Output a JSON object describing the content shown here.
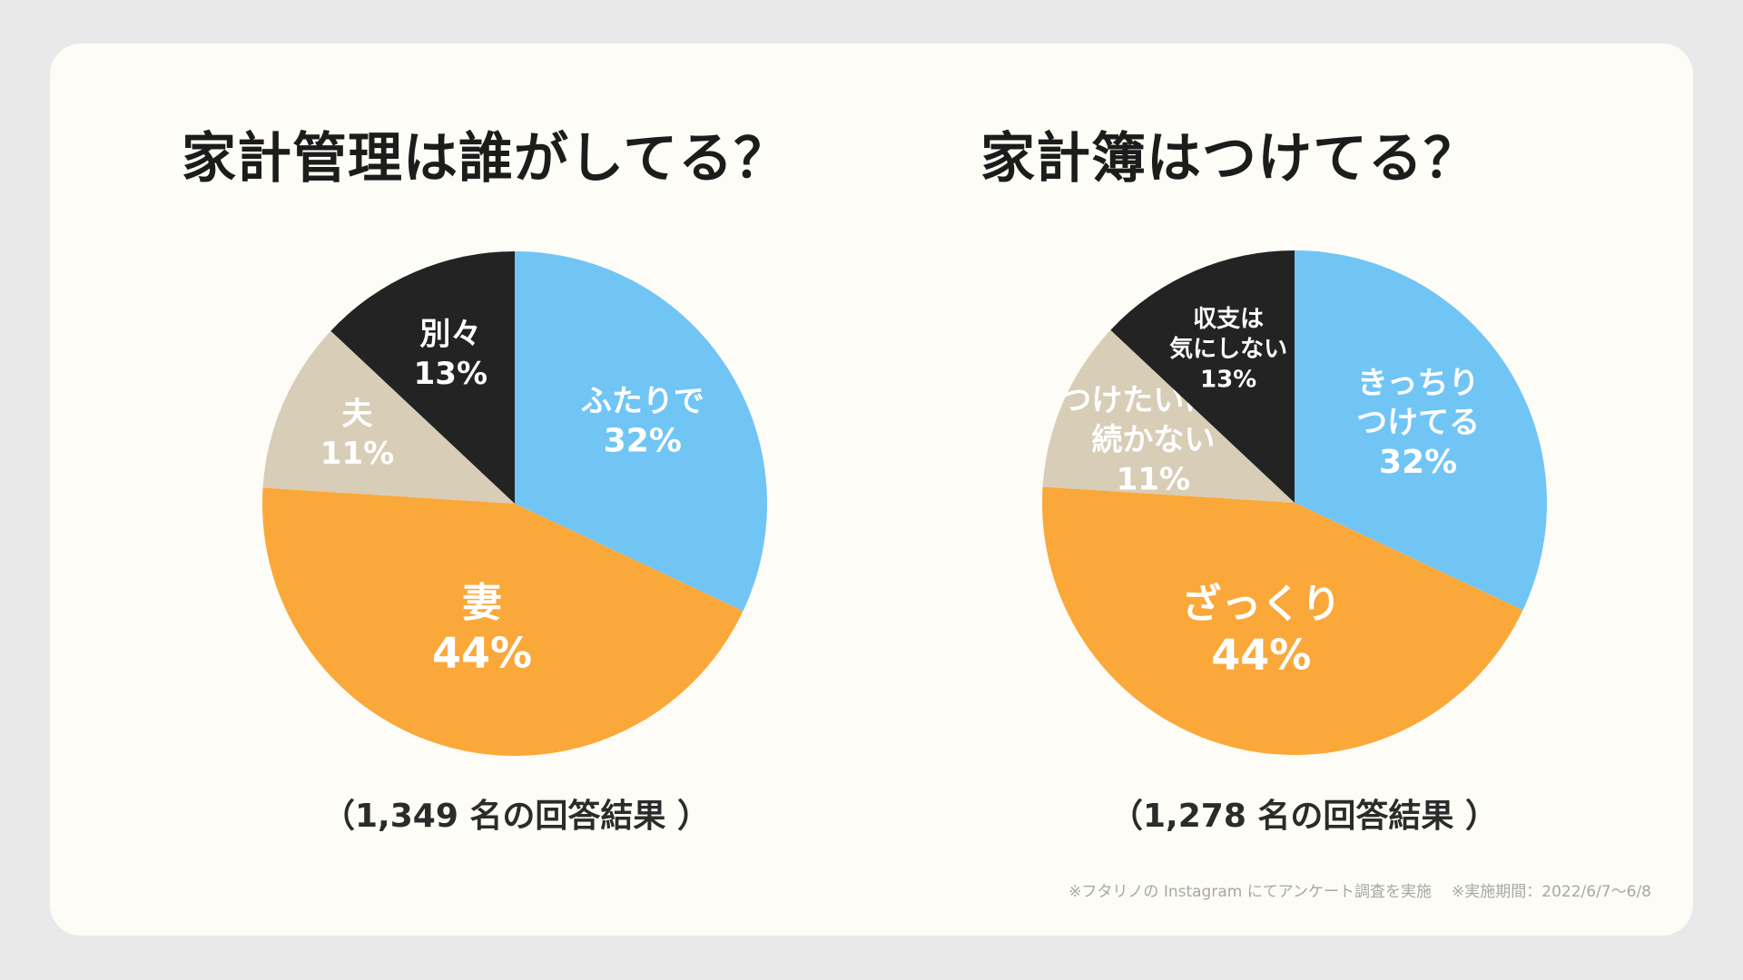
{
  "chart_data": [
    {
      "type": "pie",
      "title": "家計管理は誰がしてる？",
      "caption": "（1,349 名の回答結果 ）",
      "slices": [
        {
          "lines": [
            "ふたりで"
          ],
          "pct_label": "32%",
          "value": 32,
          "color": "#71c5f5"
        },
        {
          "lines": [
            "妻"
          ],
          "pct_label": "44%",
          "value": 44,
          "color": "#fba83a"
        },
        {
          "lines": [
            "夫"
          ],
          "pct_label": "11%",
          "value": 11,
          "color": "#d8cdb7"
        },
        {
          "lines": [
            "別々"
          ],
          "pct_label": "13%",
          "value": 13,
          "color": "#232323"
        }
      ]
    },
    {
      "type": "pie",
      "title": "家計簿はつけてる？",
      "caption": "（1,278 名の回答結果 ）",
      "slices": [
        {
          "lines": [
            "きっちり",
            "つけてる"
          ],
          "pct_label": "32%",
          "value": 32,
          "color": "#71c5f5"
        },
        {
          "lines": [
            "ざっくり"
          ],
          "pct_label": "44%",
          "value": 44,
          "color": "#fba83a"
        },
        {
          "lines": [
            "つけたいけど",
            "続かない"
          ],
          "pct_label": "11%",
          "value": 11,
          "color": "#d8cdb7"
        },
        {
          "lines": [
            "収支は",
            "気にしない"
          ],
          "pct_label": "13%",
          "value": 13,
          "color": "#232323"
        }
      ]
    }
  ],
  "footnote": {
    "survey": "※フタリノの Instagram にてアンケート調査を実施",
    "period": "※実施期間：2022/6/7〜6/8"
  }
}
